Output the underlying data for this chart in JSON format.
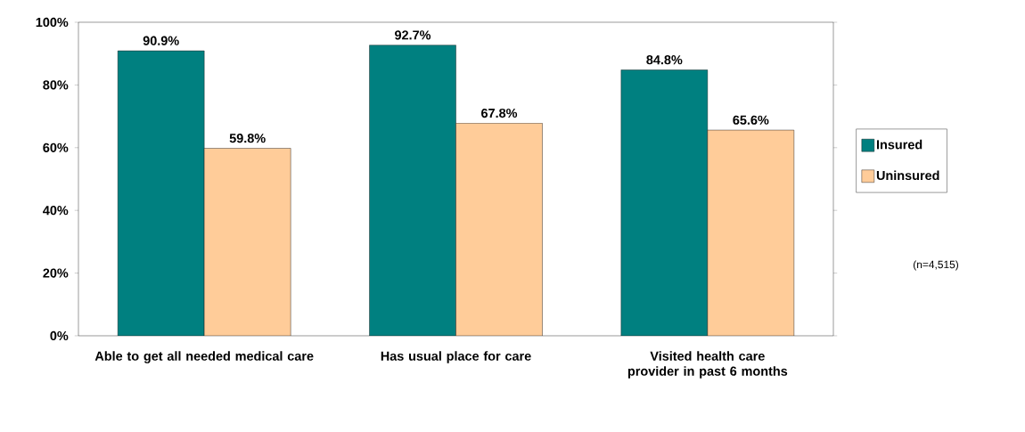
{
  "chart_data": {
    "type": "bar",
    "categories": [
      "Able to get all needed medical care",
      "Has usual place for care",
      "Visited health care provider in past 6 months"
    ],
    "series": [
      {
        "name": "Insured",
        "color": "#008080",
        "values": [
          90.9,
          92.7,
          84.8
        ],
        "value_labels": [
          "90.9%",
          "92.7%",
          "84.8%"
        ]
      },
      {
        "name": "Uninsured",
        "color": "#ffcc99",
        "values": [
          59.8,
          67.8,
          65.6
        ],
        "value_labels": [
          "59.8%",
          "67.8%",
          "65.6%"
        ]
      }
    ],
    "ylim": [
      0,
      100
    ],
    "yticks": [
      {
        "value": 0,
        "label": "0%"
      },
      {
        "value": 20,
        "label": "20%"
      },
      {
        "value": 40,
        "label": "40%"
      },
      {
        "value": 60,
        "label": "60%"
      },
      {
        "value": 80,
        "label": "80%"
      },
      {
        "value": 100,
        "label": "100%"
      }
    ],
    "legend": "right",
    "grid": false,
    "annotations": [
      "(n=4,515)"
    ]
  }
}
